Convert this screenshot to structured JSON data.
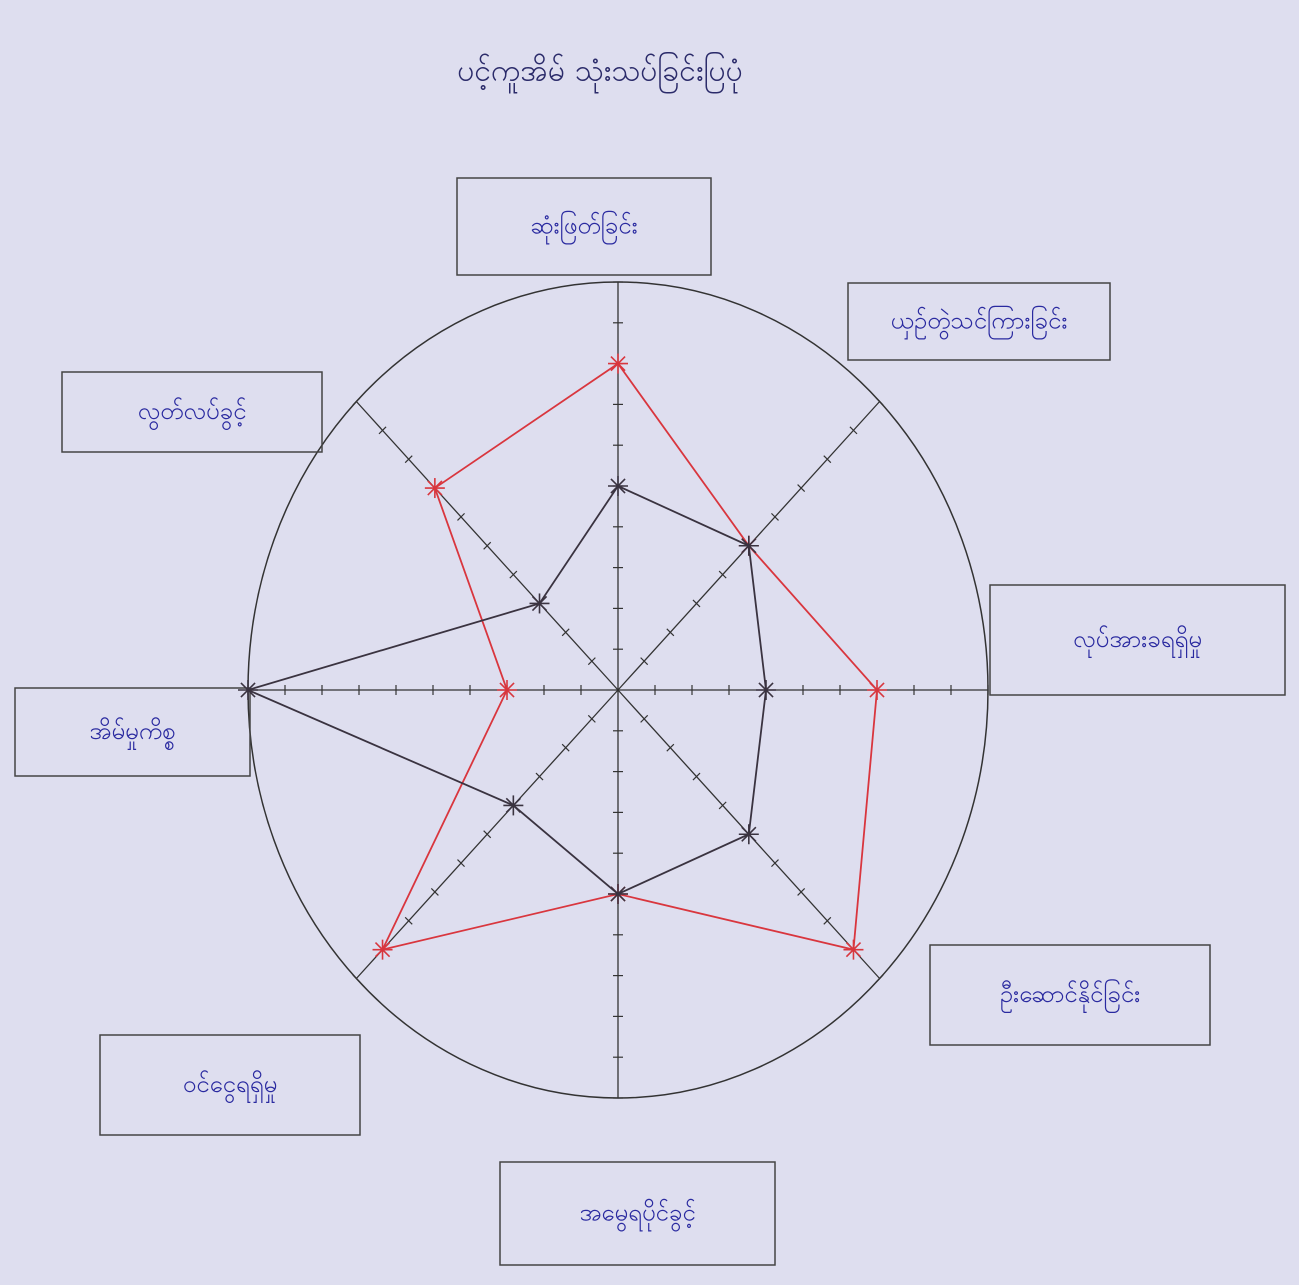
{
  "chart_data": {
    "type": "radar",
    "title": "ပင့်ကူအိမ် သုံးသပ်ခြင်းပြပုံ",
    "categories": [
      "ဆုံးဖြတ်ခြင်း",
      "ယှဉ်တွဲသင်ကြားခြင်း",
      "လုပ်အားခရရှိမှု",
      "ဦးဆောင်နိုင်ခြင်း",
      "အမွေရပိုင်ခွင့်",
      "ဝင်ငွေရရှိမှု",
      "အိမ်မှုကိစ္စ",
      "လွတ်လပ်ခွင့်"
    ],
    "series": [
      {
        "color": "#d9363e",
        "values": [
          8,
          5,
          7,
          9,
          5,
          9,
          3,
          7
        ]
      },
      {
        "color": "#3a3340",
        "values": [
          5,
          5,
          4,
          5,
          5,
          4,
          10,
          3
        ]
      }
    ],
    "rlim": [
      0,
      10
    ],
    "rticks": [
      1,
      2,
      3,
      4,
      5,
      6,
      7,
      8,
      9,
      10
    ]
  }
}
